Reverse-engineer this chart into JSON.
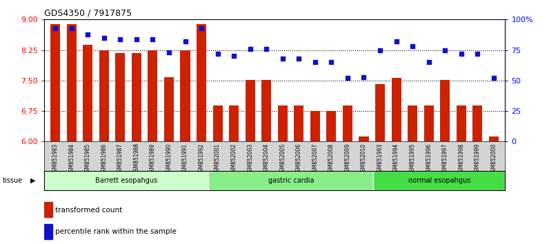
{
  "title": "GDS4350 / 7917875",
  "samples": [
    "GSM851983",
    "GSM851984",
    "GSM851985",
    "GSM851986",
    "GSM851987",
    "GSM851988",
    "GSM851989",
    "GSM851990",
    "GSM851991",
    "GSM851992",
    "GSM852001",
    "GSM852002",
    "GSM852003",
    "GSM852004",
    "GSM852005",
    "GSM852006",
    "GSM852007",
    "GSM852008",
    "GSM852009",
    "GSM852010",
    "GSM851993",
    "GSM851994",
    "GSM851995",
    "GSM851996",
    "GSM851997",
    "GSM851998",
    "GSM851999",
    "GSM852000"
  ],
  "bar_values": [
    8.88,
    8.88,
    8.38,
    8.25,
    8.18,
    8.18,
    8.24,
    7.58,
    8.24,
    8.88,
    6.88,
    6.88,
    7.52,
    7.52,
    6.88,
    6.88,
    6.75,
    6.75,
    6.88,
    6.12,
    7.42,
    7.56,
    6.88,
    6.88,
    7.52,
    6.88,
    6.88,
    6.12
  ],
  "dot_values": [
    93,
    93,
    88,
    85,
    84,
    84,
    84,
    73,
    82,
    93,
    72,
    70,
    76,
    76,
    68,
    68,
    65,
    65,
    52,
    53,
    75,
    82,
    78,
    65,
    75,
    72,
    72,
    52
  ],
  "groups": [
    {
      "label": "Barrett esopahgus",
      "start": 0,
      "end": 9,
      "color": "#ccffcc"
    },
    {
      "label": "gastric cardia",
      "start": 10,
      "end": 19,
      "color": "#88ee88"
    },
    {
      "label": "normal esopahgus",
      "start": 20,
      "end": 27,
      "color": "#44dd44"
    }
  ],
  "bar_color": "#cc2200",
  "dot_color": "#1111cc",
  "left_ylim": [
    6,
    9
  ],
  "left_yticks": [
    6,
    6.75,
    7.5,
    8.25,
    9
  ],
  "right_ylim": [
    0,
    100
  ],
  "right_yticks": [
    0,
    25,
    50,
    75,
    100
  ],
  "right_yticklabels": [
    "0",
    "25",
    "50",
    "75",
    "100%"
  ],
  "hlines": [
    6.75,
    7.5,
    8.25
  ],
  "tissue_label": "tissue",
  "legend_bar_label": "transformed count",
  "legend_dot_label": "percentile rank within the sample"
}
